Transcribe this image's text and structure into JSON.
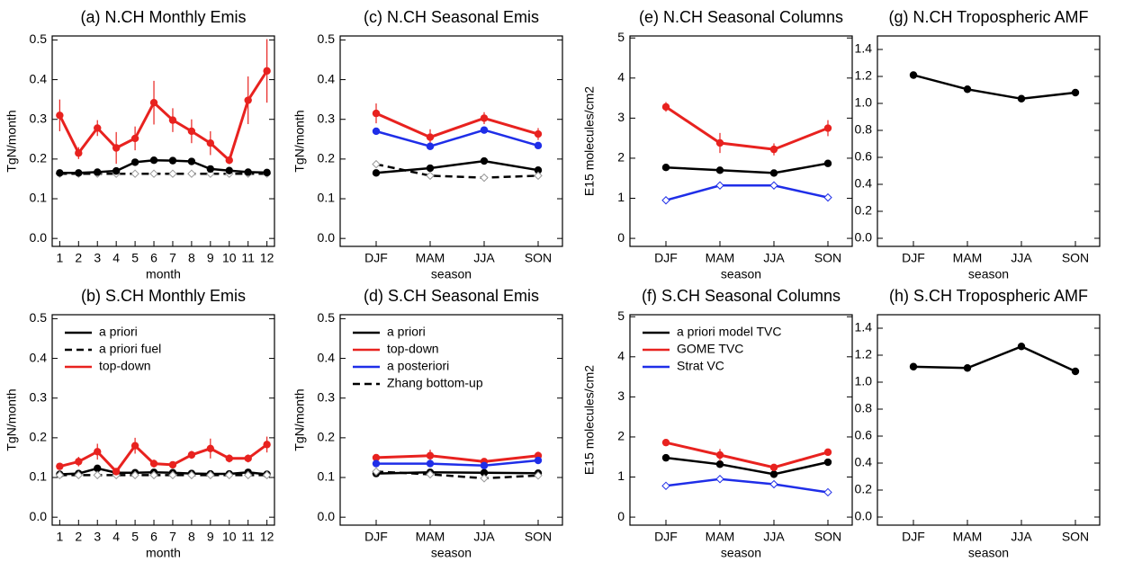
{
  "chart_data": [
    {
      "type": "line",
      "title": "(a)  N.CH Monthly Emis",
      "x_label": "month",
      "y_label": "TgN/month",
      "x": [
        1,
        2,
        3,
        4,
        5,
        6,
        7,
        8,
        9,
        10,
        11,
        12
      ],
      "xlim": [
        0.6,
        12.4
      ],
      "xticks": [
        1,
        2,
        3,
        4,
        5,
        6,
        7,
        8,
        9,
        10,
        11,
        12
      ],
      "ylim": [
        -0.02,
        0.51
      ],
      "yticks": [
        {
          "value": 0,
          "label": "0.0"
        },
        0.1,
        0.2,
        0.3,
        0.4,
        0.5
      ],
      "series": [
        {
          "color": "#000000",
          "dash": true,
          "marker": "diamond",
          "values": [
            0.163,
            0.163,
            0.163,
            0.163,
            0.163,
            0.163,
            0.163,
            0.163,
            0.163,
            0.163,
            0.163,
            0.163
          ]
        },
        {
          "color": "#000000",
          "marker": "circle",
          "values": [
            0.165,
            0.165,
            0.167,
            0.17,
            0.192,
            0.197,
            0.196,
            0.194,
            0.175,
            0.171,
            0.167,
            0.166
          ]
        },
        {
          "color": "#e8221f",
          "marker": "circle",
          "values": [
            0.31,
            0.215,
            0.278,
            0.228,
            0.252,
            0.342,
            0.298,
            0.27,
            0.24,
            0.197,
            0.348,
            0.422
          ],
          "errors": [
            0.04,
            0.015,
            0.02,
            0.04,
            0.03,
            0.055,
            0.03,
            0.03,
            0.03,
            0.01,
            0.06,
            0.08
          ]
        }
      ]
    },
    {
      "type": "line",
      "title": "(b)  S.CH Monthly Emis",
      "x_label": "month",
      "y_label": "TgN/month",
      "x": [
        1,
        2,
        3,
        4,
        5,
        6,
        7,
        8,
        9,
        10,
        11,
        12
      ],
      "xlim": [
        0.6,
        12.4
      ],
      "xticks": [
        1,
        2,
        3,
        4,
        5,
        6,
        7,
        8,
        9,
        10,
        11,
        12
      ],
      "ylim": [
        -0.02,
        0.51
      ],
      "yticks": [
        {
          "value": 0,
          "label": "0.0"
        },
        0.1,
        0.2,
        0.3,
        0.4,
        0.5
      ],
      "legend": "upper left",
      "series": [
        {
          "name": "a priori",
          "color": "#000000",
          "marker": "circle",
          "values": [
            0.108,
            0.11,
            0.123,
            0.112,
            0.112,
            0.113,
            0.112,
            0.11,
            0.109,
            0.109,
            0.113,
            0.108
          ]
        },
        {
          "name": "a priori fuel",
          "color": "#000000",
          "dash": true,
          "marker": "diamond",
          "values": [
            0.106,
            0.106,
            0.106,
            0.106,
            0.106,
            0.106,
            0.106,
            0.106,
            0.106,
            0.106,
            0.106,
            0.106
          ]
        },
        {
          "name": "top-down",
          "color": "#e8221f",
          "marker": "circle",
          "values": [
            0.128,
            0.14,
            0.165,
            0.115,
            0.18,
            0.135,
            0.132,
            0.157,
            0.173,
            0.148,
            0.148,
            0.183
          ],
          "errors": [
            0.005,
            0.012,
            0.02,
            0.005,
            0.02,
            0.01,
            0.005,
            0.01,
            0.025,
            0.01,
            0.01,
            0.02
          ]
        }
      ]
    },
    {
      "type": "line",
      "title": "(c)  N.CH Seasonal Emis",
      "x_label": "season",
      "y_label": "TgN/month",
      "categories": [
        "DJF",
        "MAM",
        "JJA",
        "SON"
      ],
      "ylim": [
        -0.02,
        0.51
      ],
      "yticks": [
        {
          "value": 0,
          "label": "0.0"
        },
        0.1,
        0.2,
        0.3,
        0.4,
        0.5
      ],
      "series": [
        {
          "color": "#000000",
          "marker": "circle",
          "values": [
            0.165,
            0.177,
            0.195,
            0.172
          ]
        },
        {
          "color": "#e8221f",
          "marker": "circle",
          "values": [
            0.315,
            0.255,
            0.303,
            0.263
          ],
          "errors": [
            0.025,
            0.02,
            0.015,
            0.015
          ]
        },
        {
          "color": "#1f2ee8",
          "marker": "circle",
          "values": [
            0.27,
            0.232,
            0.273,
            0.234
          ]
        },
        {
          "color": "#000000",
          "dash": true,
          "marker": "diamond",
          "values": [
            0.187,
            0.158,
            0.153,
            0.158
          ]
        }
      ]
    },
    {
      "type": "line",
      "title": "(d)  S.CH Seasonal Emis",
      "x_label": "season",
      "y_label": "TgN/month",
      "categories": [
        "DJF",
        "MAM",
        "JJA",
        "SON"
      ],
      "ylim": [
        -0.02,
        0.51
      ],
      "yticks": [
        {
          "value": 0,
          "label": "0.0"
        },
        0.1,
        0.2,
        0.3,
        0.4,
        0.5
      ],
      "legend": "upper left",
      "series": [
        {
          "name": "a priori",
          "color": "#000000",
          "marker": "circle",
          "values": [
            0.11,
            0.113,
            0.112,
            0.111
          ]
        },
        {
          "name": "top-down",
          "color": "#e8221f",
          "marker": "circle",
          "values": [
            0.15,
            0.155,
            0.14,
            0.155
          ],
          "errors": [
            0.005,
            0.015,
            0.005,
            0.01
          ]
        },
        {
          "name": "a posteriori",
          "color": "#1f2ee8",
          "marker": "circle",
          "values": [
            0.135,
            0.135,
            0.13,
            0.143
          ]
        },
        {
          "name": "Zhang bottom-up",
          "color": "#000000",
          "dash": true,
          "marker": "diamond",
          "values": [
            0.115,
            0.108,
            0.098,
            0.105
          ]
        }
      ]
    },
    {
      "type": "line",
      "title": "(e)  N.CH Seasonal Columns",
      "x_label": "season",
      "y_label": "E15 molecules/cm2",
      "categories": [
        "DJF",
        "MAM",
        "JJA",
        "SON"
      ],
      "ylim": [
        -0.2,
        5.05
      ],
      "yticks": [
        0,
        1,
        2,
        3,
        4,
        5
      ],
      "series": [
        {
          "color": "#000000",
          "marker": "circle",
          "values": [
            1.77,
            1.7,
            1.63,
            1.87
          ]
        },
        {
          "color": "#e8221f",
          "marker": "circle",
          "values": [
            3.28,
            2.38,
            2.22,
            2.75
          ],
          "errors": [
            0.12,
            0.25,
            0.15,
            0.2
          ]
        },
        {
          "color": "#1f2ee8",
          "marker": "diamond",
          "values": [
            0.95,
            1.32,
            1.32,
            1.02
          ]
        }
      ]
    },
    {
      "type": "line",
      "title": "(f)  S.CH Seasonal Columns",
      "x_label": "season",
      "y_label": "E15 molecules/cm2",
      "categories": [
        "DJF",
        "MAM",
        "JJA",
        "SON"
      ],
      "ylim": [
        -0.2,
        5.05
      ],
      "yticks": [
        0,
        1,
        2,
        3,
        4,
        5
      ],
      "legend": "upper left",
      "series": [
        {
          "name": "a priori model TVC",
          "color": "#000000",
          "marker": "circle",
          "values": [
            1.48,
            1.32,
            1.07,
            1.37
          ]
        },
        {
          "name": "GOME TVC",
          "color": "#e8221f",
          "marker": "circle",
          "values": [
            1.86,
            1.55,
            1.24,
            1.62
          ],
          "errors": [
            0.05,
            0.15,
            0.05,
            0.05
          ]
        },
        {
          "name": "Strat VC",
          "color": "#1f2ee8",
          "marker": "diamond",
          "values": [
            0.78,
            0.95,
            0.82,
            0.62
          ]
        }
      ]
    },
    {
      "type": "line",
      "title": "(g)  N.CH Tropospheric AMF",
      "x_label": "season",
      "categories": [
        "DJF",
        "MAM",
        "JJA",
        "SON"
      ],
      "ylim": [
        -0.06,
        1.5
      ],
      "yticks": [
        {
          "value": 0,
          "label": "0.0"
        },
        0.2,
        0.4,
        0.6,
        0.8,
        {
          "value": 1,
          "label": "1.0"
        },
        1.2,
        1.4
      ],
      "series": [
        {
          "color": "#000000",
          "marker": "circle",
          "values": [
            1.21,
            1.105,
            1.035,
            1.08
          ]
        }
      ]
    },
    {
      "type": "line",
      "title": "(h)  S.CH Tropospheric AMF",
      "x_label": "season",
      "categories": [
        "DJF",
        "MAM",
        "JJA",
        "SON"
      ],
      "ylim": [
        -0.06,
        1.5
      ],
      "yticks": [
        {
          "value": 0,
          "label": "0.0"
        },
        0.2,
        0.4,
        0.6,
        0.8,
        {
          "value": 1,
          "label": "1.0"
        },
        1.2,
        1.4
      ],
      "series": [
        {
          "color": "#000000",
          "marker": "circle",
          "values": [
            1.115,
            1.105,
            1.265,
            1.08
          ]
        }
      ]
    }
  ]
}
